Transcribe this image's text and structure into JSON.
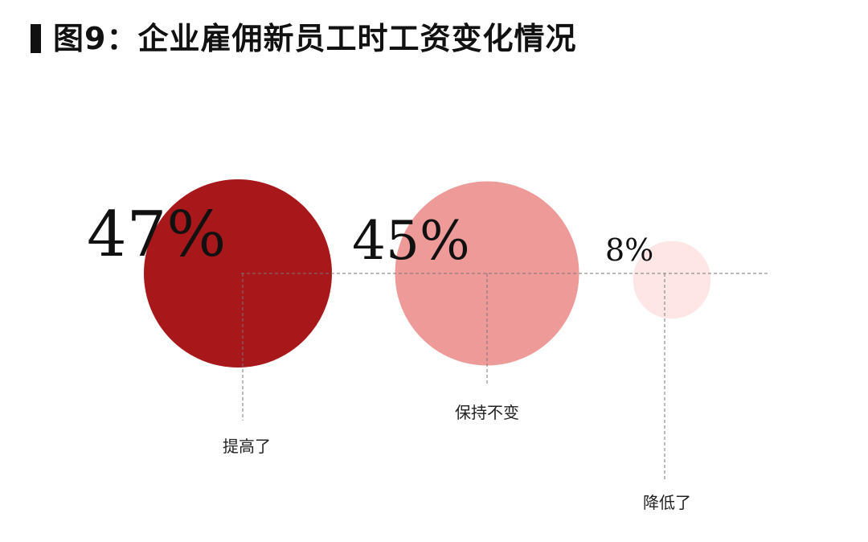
{
  "title": "图9：企业雇佣新员工时工资变化情况",
  "chart_data": {
    "type": "bubble",
    "title": "图9：企业雇佣新员工时工资变化情况",
    "categories": [
      "提高了",
      "保持不变",
      "降低了"
    ],
    "values": [
      47,
      45,
      8
    ],
    "value_labels": [
      "47%",
      "45%",
      "8%"
    ],
    "unit": "%",
    "colors": [
      "#a8171a",
      "#ed9a98",
      "#fde6e5"
    ],
    "grid": false,
    "legend": "none"
  }
}
